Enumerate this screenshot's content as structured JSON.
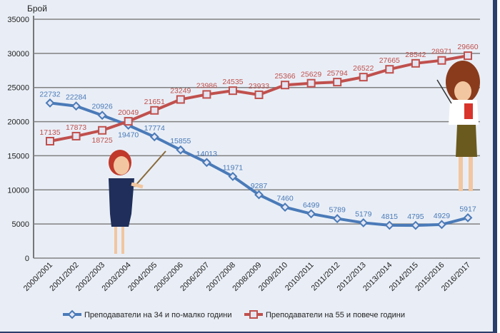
{
  "chart_data": {
    "type": "line",
    "title": "",
    "ylabel": "Брой",
    "xlabel": "",
    "ylim": [
      0,
      35000
    ],
    "yticks": [
      0,
      5000,
      10000,
      15000,
      20000,
      25000,
      30000,
      35000
    ],
    "grid": true,
    "legend_position": "bottom",
    "categories": [
      "2000/2001",
      "2001/2002",
      "2002/2003",
      "2003/2004",
      "2004/2005",
      "2005/2006",
      "2006/2007",
      "2007/2008",
      "2008/2009",
      "2009/2010",
      "2010/2011",
      "2011/2012",
      "2012/2013",
      "2013/2014",
      "2014/2015",
      "2015/2016",
      "2016/2017"
    ],
    "series": [
      {
        "name": "Преподаватели на 34 и по-малко години",
        "color": "#4a7ab8",
        "marker": "diamond",
        "values": [
          22732,
          22284,
          20926,
          19470,
          17774,
          15855,
          14013,
          11971,
          9287,
          7460,
          6499,
          5789,
          5179,
          4815,
          4795,
          4929,
          5917
        ]
      },
      {
        "name": "Преподаватели на 55 и повече години",
        "color": "#c0504d",
        "marker": "square",
        "values": [
          17135,
          17873,
          18725,
          20049,
          21651,
          23249,
          23986,
          24535,
          23933,
          25366,
          25629,
          25794,
          26522,
          27665,
          28542,
          28971,
          29660
        ]
      }
    ]
  }
}
